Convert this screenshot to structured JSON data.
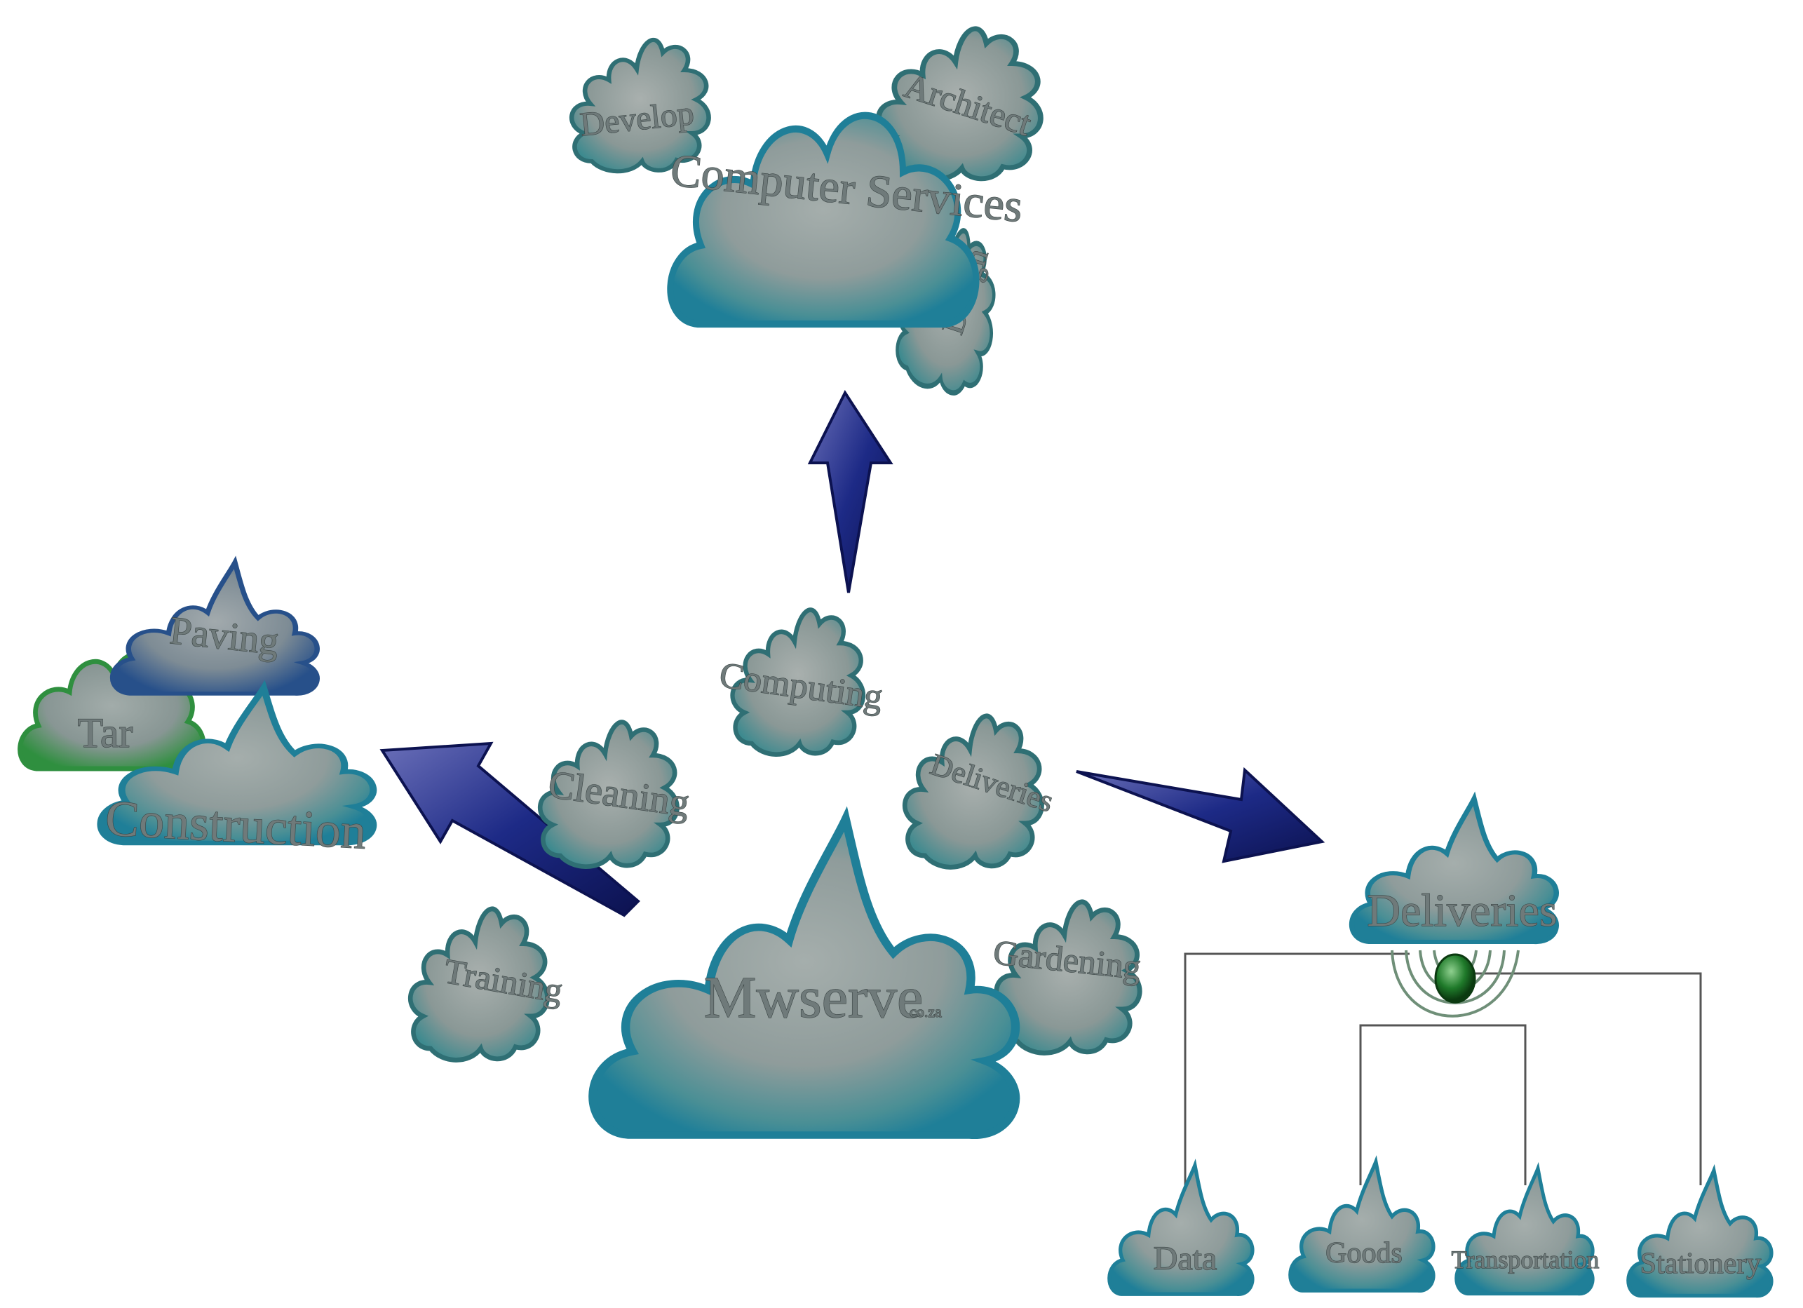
{
  "colors": {
    "cloud_teal": "#3d8a8f",
    "cloud_edge": "#1f7f98",
    "cloud_fill": "#8f9c9b",
    "cloud_blue": "#27508a",
    "cloud_green": "#2f8f3f",
    "arrow": "#1d2a86",
    "connector": "#555555",
    "node_green": "#1f7a2a"
  },
  "hub": {
    "label": "Mwserve",
    "suffix": "co.za"
  },
  "services": {
    "training": "Training",
    "cleaning": "Cleaning",
    "computing": "Computing",
    "deliveries": "Deliveries",
    "gardening": "Gardening"
  },
  "construction_group": {
    "main": "Construction",
    "paving": "Paving",
    "tar": "Tar"
  },
  "computer_services_group": {
    "main": "Computer Services",
    "develop": "Develop",
    "architect": "Architect",
    "design": "Design"
  },
  "deliveries_group": {
    "main": "Deliveries",
    "children": [
      "Data",
      "Goods",
      "Transportation",
      "Stationery"
    ]
  }
}
